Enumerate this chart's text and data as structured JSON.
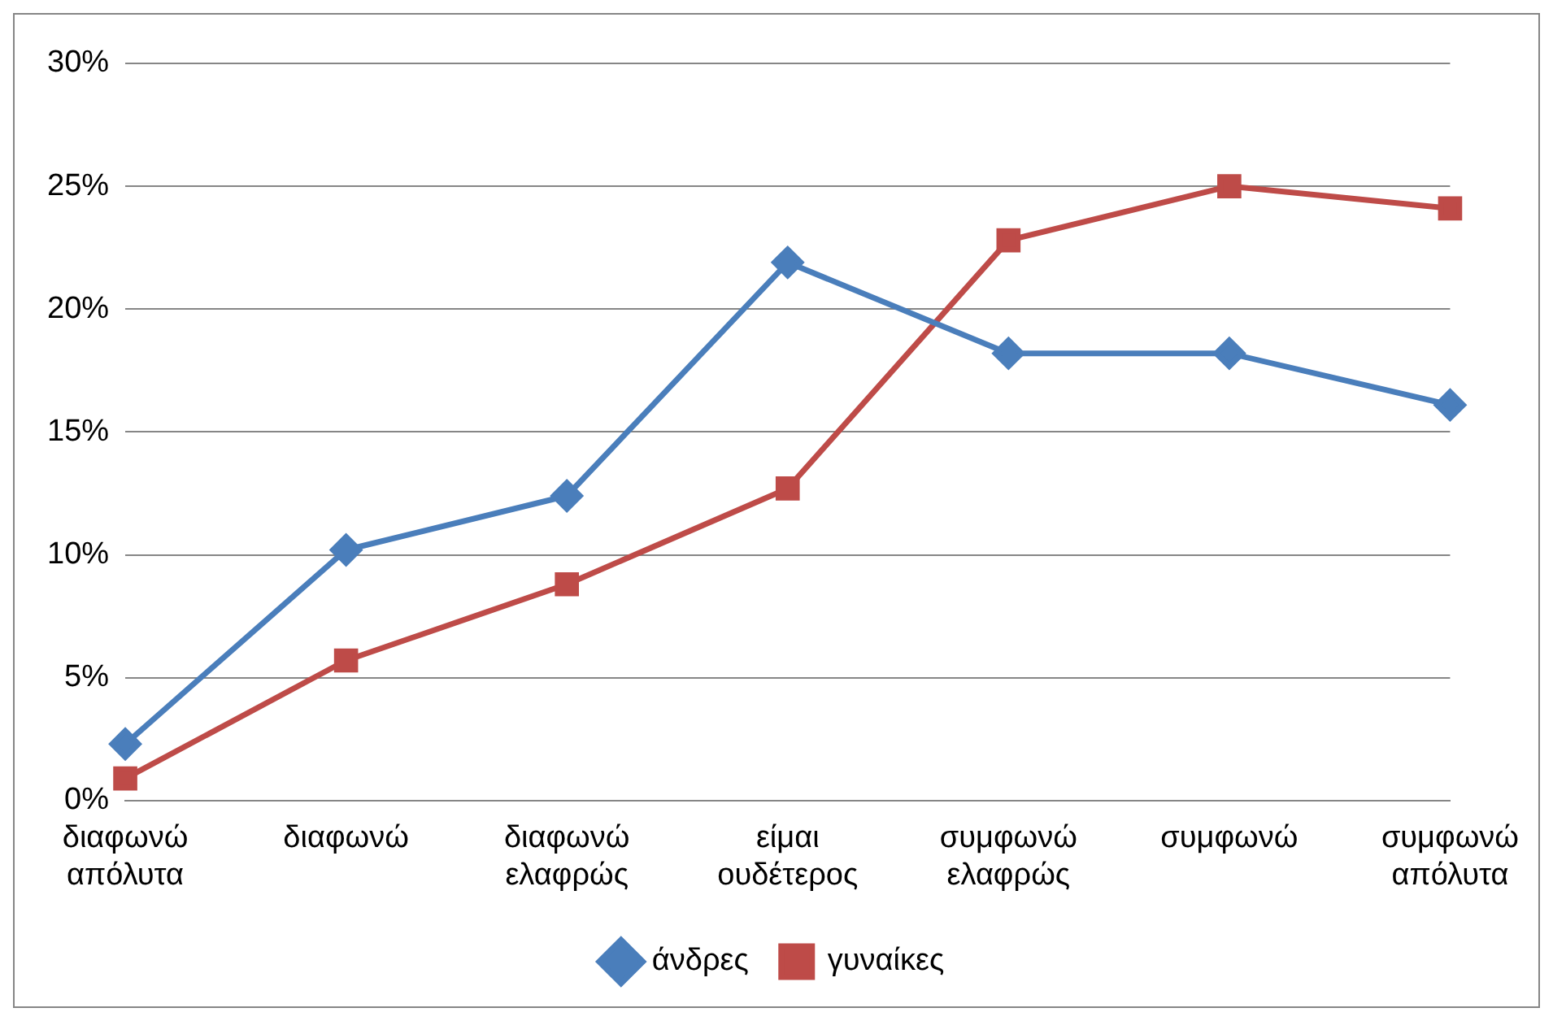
{
  "chart_data": {
    "type": "line",
    "categories": [
      "διαφωνώ απόλυτα",
      "διαφωνώ",
      "διαφωνώ ελαφρώς",
      "είμαι ουδέτερος",
      "συμφωνώ ελαφρώς",
      "συμφωνώ",
      "συμφωνώ απόλυτα"
    ],
    "series": [
      {
        "name": "άνδρες",
        "color": "#4a7ebb",
        "marker": "diamond",
        "values": [
          2.3,
          10.2,
          12.4,
          21.9,
          18.2,
          18.2,
          16.1
        ]
      },
      {
        "name": "γυναίκες",
        "color": "#be4b48",
        "marker": "square",
        "values": [
          0.9,
          5.7,
          8.8,
          12.7,
          22.8,
          25.0,
          24.1
        ]
      }
    ],
    "ylim": [
      0,
      30
    ],
    "yticks": [
      {
        "value": 0,
        "label": "0%"
      },
      {
        "value": 5,
        "label": "5%"
      },
      {
        "value": 10,
        "label": "10%"
      },
      {
        "value": 15,
        "label": "15%"
      },
      {
        "value": 20,
        "label": "20%"
      },
      {
        "value": 25,
        "label": "25%"
      },
      {
        "value": 30,
        "label": "30%"
      }
    ],
    "grid": "y",
    "legend": "bottom"
  }
}
